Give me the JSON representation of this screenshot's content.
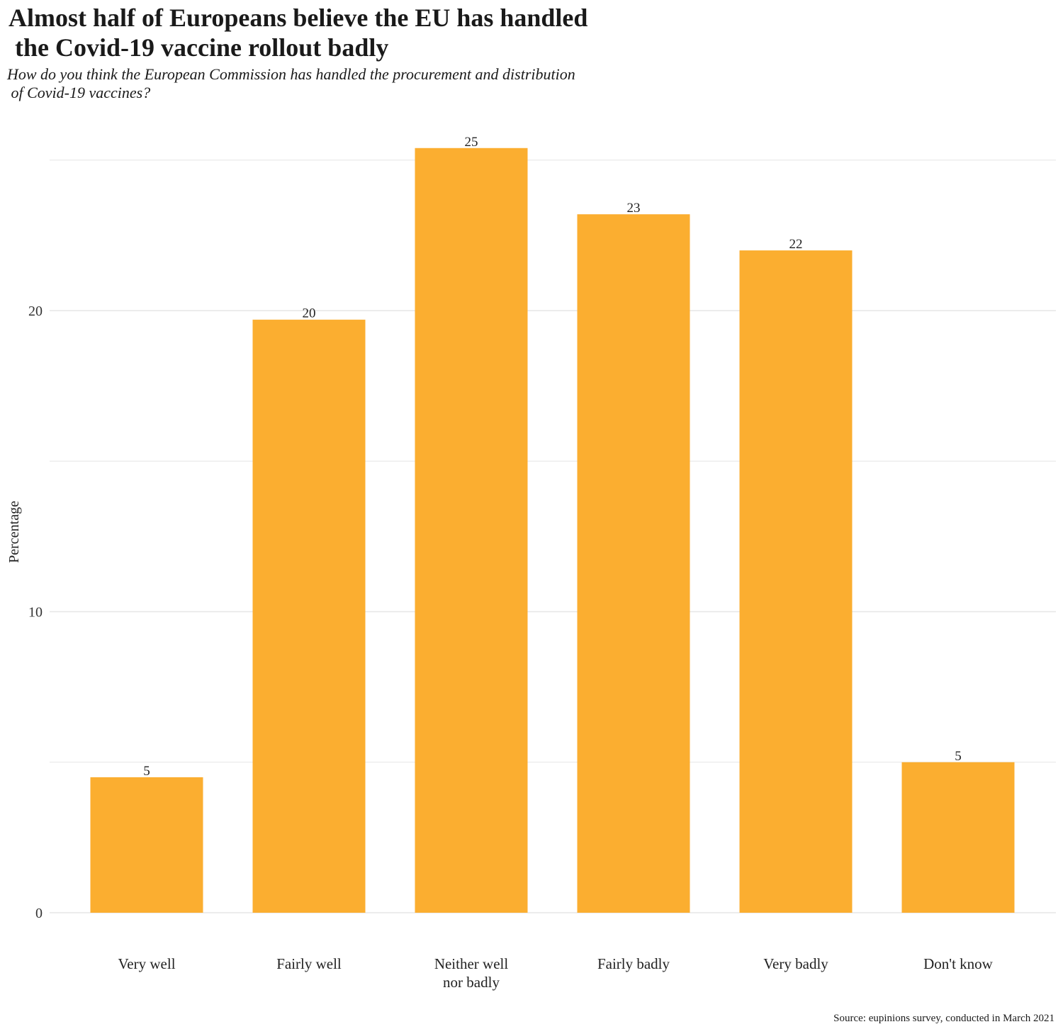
{
  "title": "Almost half of Europeans believe the EU has handled\n the Covid-19 vaccine rollout badly",
  "subtitle": "How do you think the European Commission has handled the procurement and distribution\n of Covid-19 vaccines?",
  "source": "Source: eupinions survey, conducted in March 2021",
  "colors": {
    "bar": "#FBAE30",
    "grid": "#e6e6e6"
  },
  "chart_data": {
    "type": "bar",
    "title": "Almost half of Europeans believe the EU has handled the Covid-19 vaccine rollout badly",
    "xlabel": "",
    "ylabel": "Percentage",
    "categories": [
      "Very well",
      "Fairly well",
      "Neither well\nnor badly",
      "Fairly badly",
      "Very badly",
      "Don't know"
    ],
    "values": [
      4.5,
      19.7,
      25.4,
      23.2,
      22.0,
      5.0
    ],
    "data_labels": [
      "5",
      "20",
      "25",
      "23",
      "22",
      "5"
    ],
    "ylim": [
      0,
      27
    ],
    "yticks": [
      0,
      10,
      20
    ],
    "grid": true
  }
}
